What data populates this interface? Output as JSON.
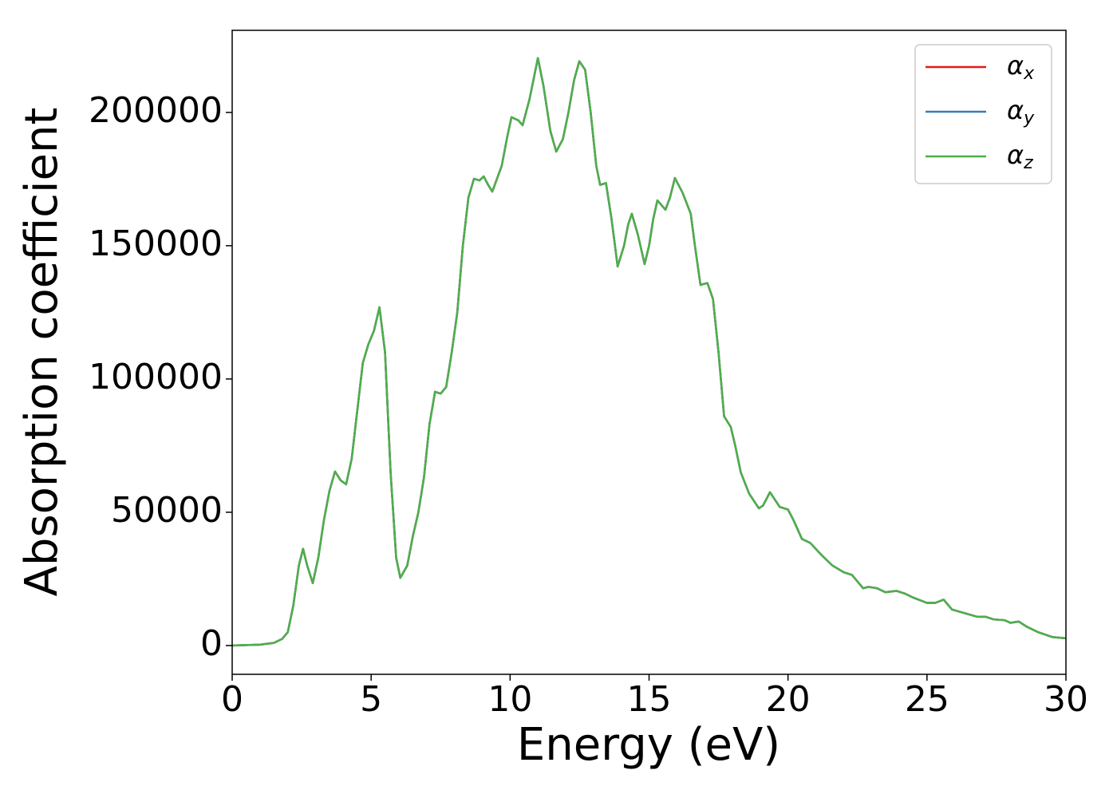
{
  "chart_data": {
    "type": "line",
    "xlabel": "Energy (eV)",
    "ylabel": "Absorption coefficient",
    "x": [
      0,
      1,
      1.5,
      1.8,
      2.0,
      2.2,
      2.4,
      2.55,
      2.7,
      2.9,
      3.1,
      3.3,
      3.5,
      3.7,
      3.9,
      4.1,
      4.3,
      4.5,
      4.7,
      4.9,
      5.1,
      5.3,
      5.5,
      5.7,
      5.9,
      6.05,
      6.3,
      6.5,
      6.7,
      6.9,
      7.1,
      7.3,
      7.5,
      7.7,
      7.9,
      8.1,
      8.3,
      8.5,
      8.7,
      8.9,
      9.05,
      9.2,
      9.36,
      9.7,
      9.9,
      10.05,
      10.3,
      10.45,
      10.7,
      11.0,
      11.2,
      11.45,
      11.66,
      11.9,
      12.1,
      12.3,
      12.49,
      12.7,
      12.9,
      13.1,
      13.24,
      13.45,
      13.65,
      13.87,
      14.1,
      14.25,
      14.38,
      14.6,
      14.84,
      15.0,
      15.15,
      15.3,
      15.59,
      15.75,
      15.93,
      16.2,
      16.5,
      16.65,
      16.85,
      17.1,
      17.3,
      17.5,
      17.7,
      17.94,
      18.1,
      18.3,
      18.6,
      18.95,
      19.1,
      19.35,
      19.7,
      20.0,
      20.2,
      20.5,
      20.8,
      21.2,
      21.6,
      22.0,
      22.3,
      22.5,
      22.7,
      22.9,
      23.2,
      23.5,
      23.9,
      24.2,
      24.5,
      25.0,
      25.3,
      25.6,
      25.9,
      26.4,
      26.8,
      27.1,
      27.4,
      27.8,
      28.0,
      28.3,
      28.6,
      29.0,
      29.5,
      30.0
    ],
    "series": [
      {
        "name": "αx",
        "color": "#e41a1c",
        "values": [
          0,
          300,
          1000,
          2500,
          5000,
          15000,
          30000,
          36300,
          30000,
          23400,
          33000,
          47000,
          58000,
          65300,
          62000,
          60500,
          70000,
          88000,
          106000,
          113000,
          118000,
          126900,
          110000,
          65000,
          33000,
          25400,
          30000,
          41000,
          50000,
          63000,
          83000,
          95200,
          94500,
          97000,
          110000,
          125000,
          150000,
          168000,
          175100,
          174500,
          176000,
          173000,
          170300,
          180000,
          191000,
          198200,
          197000,
          195200,
          205000,
          220400,
          210000,
          193000,
          185300,
          190000,
          200000,
          212000,
          219200,
          216000,
          200000,
          180000,
          172800,
          173500,
          160000,
          142200,
          150000,
          158000,
          162000,
          154000,
          143100,
          150000,
          160000,
          167000,
          163500,
          168000,
          175400,
          170000,
          162000,
          150000,
          135300,
          136000,
          130000,
          110000,
          86000,
          82000,
          75000,
          65000,
          57000,
          51500,
          52500,
          57500,
          52000,
          51000,
          47000,
          40000,
          38500,
          34000,
          30000,
          27500,
          26500,
          24000,
          21500,
          22000,
          21500,
          20000,
          20500,
          19500,
          18000,
          16000,
          16000,
          17200,
          13500,
          12000,
          10800,
          10800,
          9800,
          9500,
          8500,
          9000,
          7000,
          5000,
          3200,
          2700
        ]
      },
      {
        "name": "αy",
        "color": "#377eb8",
        "values": [
          0,
          300,
          1000,
          2500,
          5000,
          15000,
          30000,
          36300,
          30000,
          23400,
          33000,
          47000,
          58000,
          65300,
          62000,
          60500,
          70000,
          88000,
          106000,
          113000,
          118000,
          126900,
          110000,
          65000,
          33000,
          25400,
          30000,
          41000,
          50000,
          63000,
          83000,
          95200,
          94500,
          97000,
          110000,
          125000,
          150000,
          168000,
          175100,
          174500,
          176000,
          173000,
          170300,
          180000,
          191000,
          198200,
          197000,
          195200,
          205000,
          220400,
          210000,
          193000,
          185300,
          190000,
          200000,
          212000,
          219200,
          216000,
          200000,
          180000,
          172800,
          173500,
          160000,
          142200,
          150000,
          158000,
          162000,
          154000,
          143100,
          150000,
          160000,
          167000,
          163500,
          168000,
          175400,
          170000,
          162000,
          150000,
          135300,
          136000,
          130000,
          110000,
          86000,
          82000,
          75000,
          65000,
          57000,
          51500,
          52500,
          57500,
          52000,
          51000,
          47000,
          40000,
          38500,
          34000,
          30000,
          27500,
          26500,
          24000,
          21500,
          22000,
          21500,
          20000,
          20500,
          19500,
          18000,
          16000,
          16000,
          17200,
          13500,
          12000,
          10800,
          10800,
          9800,
          9500,
          8500,
          9000,
          7000,
          5000,
          3200,
          2700
        ]
      },
      {
        "name": "αz",
        "color": "#4daf4a",
        "values": [
          0,
          300,
          1000,
          2500,
          5000,
          15000,
          30000,
          36300,
          30000,
          23400,
          33000,
          47000,
          58000,
          65300,
          62000,
          60500,
          70000,
          88000,
          106000,
          113000,
          118000,
          126900,
          110000,
          65000,
          33000,
          25400,
          30000,
          41000,
          50000,
          63000,
          83000,
          95200,
          94500,
          97000,
          110000,
          125000,
          150000,
          168000,
          175100,
          174500,
          176000,
          173000,
          170300,
          180000,
          191000,
          198200,
          197000,
          195200,
          205000,
          220400,
          210000,
          193000,
          185300,
          190000,
          200000,
          212000,
          219200,
          216000,
          200000,
          180000,
          172800,
          173500,
          160000,
          142200,
          150000,
          158000,
          162000,
          154000,
          143100,
          150000,
          160000,
          167000,
          163500,
          168000,
          175400,
          170000,
          162000,
          150000,
          135300,
          136000,
          130000,
          110000,
          86000,
          82000,
          75000,
          65000,
          57000,
          51500,
          52500,
          57500,
          52000,
          51000,
          47000,
          40000,
          38500,
          34000,
          30000,
          27500,
          26500,
          24000,
          21500,
          22000,
          21500,
          20000,
          20500,
          19500,
          18000,
          16000,
          16000,
          17200,
          13500,
          12000,
          10800,
          10800,
          9800,
          9500,
          8500,
          9000,
          7000,
          5000,
          3200,
          2700
        ]
      }
    ],
    "xlim": [
      0,
      30
    ],
    "xticks": [
      0,
      5,
      10,
      15,
      20,
      25,
      30
    ],
    "ylim": [
      -10800,
      230800
    ],
    "yticks": [
      0,
      50000,
      100000,
      150000,
      200000
    ],
    "grid": false,
    "legend": "upper right"
  }
}
